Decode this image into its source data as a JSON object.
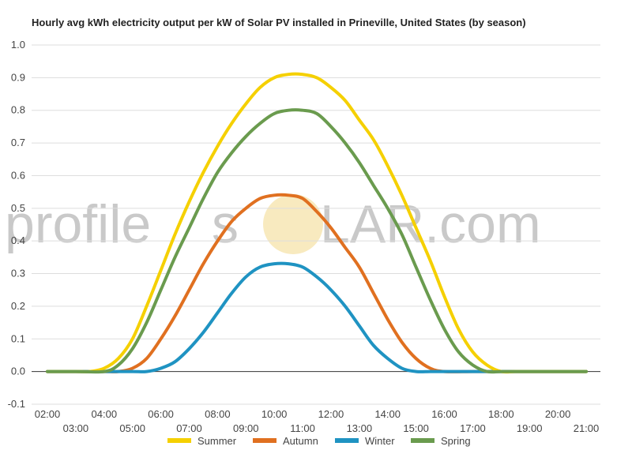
{
  "watermark": {
    "text_left": "profile",
    "text_mid": "s",
    "text_right": "LAR.com"
  },
  "chart_data": {
    "type": "line",
    "title": "Hourly avg kWh electricity output per kW of Solar PV installed in Prineville, United States (by season)",
    "xlabel": "",
    "ylabel": "",
    "x_ticks": [
      "02:00",
      "03:00",
      "04:00",
      "05:00",
      "06:00",
      "07:00",
      "08:00",
      "09:00",
      "10:00",
      "11:00",
      "12:00",
      "13:00",
      "14:00",
      "15:00",
      "16:00",
      "17:00",
      "18:00",
      "19:00",
      "20:00",
      "21:00"
    ],
    "y_ticks": [
      "1.0",
      "0.9",
      "0.8",
      "0.7",
      "0.6",
      "0.5",
      "0.4",
      "0.3",
      "0.2",
      "0.1",
      "0.0",
      "-0.1"
    ],
    "xlim": [
      2,
      21
    ],
    "ylim": [
      -0.1,
      1.0
    ],
    "grid": true,
    "legend_position": "bottom",
    "series": [
      {
        "name": "Summer",
        "color": "#f5d000",
        "points": [
          [
            2,
            0.0
          ],
          [
            3,
            0.0
          ],
          [
            3.5,
            0.0
          ],
          [
            4,
            0.01
          ],
          [
            4.5,
            0.04
          ],
          [
            5,
            0.1
          ],
          [
            5.5,
            0.2
          ],
          [
            6,
            0.31
          ],
          [
            6.5,
            0.42
          ],
          [
            7,
            0.52
          ],
          [
            7.5,
            0.61
          ],
          [
            8,
            0.69
          ],
          [
            8.5,
            0.76
          ],
          [
            9,
            0.82
          ],
          [
            9.5,
            0.87
          ],
          [
            10,
            0.9
          ],
          [
            10.5,
            0.91
          ],
          [
            11,
            0.91
          ],
          [
            11.5,
            0.9
          ],
          [
            12,
            0.87
          ],
          [
            12.5,
            0.83
          ],
          [
            13,
            0.77
          ],
          [
            13.5,
            0.71
          ],
          [
            14,
            0.63
          ],
          [
            14.5,
            0.54
          ],
          [
            15,
            0.44
          ],
          [
            15.5,
            0.34
          ],
          [
            16,
            0.23
          ],
          [
            16.5,
            0.13
          ],
          [
            17,
            0.06
          ],
          [
            17.5,
            0.02
          ],
          [
            18,
            0.0
          ],
          [
            18.5,
            0.0
          ],
          [
            19,
            0.0
          ],
          [
            20,
            0.0
          ],
          [
            21,
            0.0
          ]
        ]
      },
      {
        "name": "Autumn",
        "color": "#e07020",
        "points": [
          [
            2,
            0.0
          ],
          [
            3,
            0.0
          ],
          [
            4,
            0.0
          ],
          [
            4.5,
            0.0
          ],
          [
            5,
            0.01
          ],
          [
            5.5,
            0.04
          ],
          [
            6,
            0.1
          ],
          [
            6.5,
            0.17
          ],
          [
            7,
            0.25
          ],
          [
            7.5,
            0.33
          ],
          [
            8,
            0.4
          ],
          [
            8.5,
            0.46
          ],
          [
            9,
            0.5
          ],
          [
            9.5,
            0.53
          ],
          [
            10,
            0.54
          ],
          [
            10.5,
            0.54
          ],
          [
            11,
            0.53
          ],
          [
            11.5,
            0.49
          ],
          [
            12,
            0.44
          ],
          [
            12.5,
            0.38
          ],
          [
            13,
            0.32
          ],
          [
            13.5,
            0.24
          ],
          [
            14,
            0.16
          ],
          [
            14.5,
            0.09
          ],
          [
            15,
            0.04
          ],
          [
            15.5,
            0.01
          ],
          [
            16,
            0.0
          ],
          [
            17,
            0.0
          ],
          [
            18,
            0.0
          ],
          [
            19,
            0.0
          ],
          [
            20,
            0.0
          ],
          [
            21,
            0.0
          ]
        ]
      },
      {
        "name": "Winter",
        "color": "#1f93c2",
        "points": [
          [
            2,
            0.0
          ],
          [
            3,
            0.0
          ],
          [
            4,
            0.0
          ],
          [
            5,
            0.0
          ],
          [
            5.5,
            0.0
          ],
          [
            6,
            0.01
          ],
          [
            6.5,
            0.03
          ],
          [
            7,
            0.07
          ],
          [
            7.5,
            0.12
          ],
          [
            8,
            0.18
          ],
          [
            8.5,
            0.24
          ],
          [
            9,
            0.29
          ],
          [
            9.5,
            0.32
          ],
          [
            10,
            0.33
          ],
          [
            10.5,
            0.33
          ],
          [
            11,
            0.32
          ],
          [
            11.5,
            0.29
          ],
          [
            12,
            0.25
          ],
          [
            12.5,
            0.2
          ],
          [
            13,
            0.14
          ],
          [
            13.5,
            0.08
          ],
          [
            14,
            0.04
          ],
          [
            14.5,
            0.01
          ],
          [
            15,
            0.0
          ],
          [
            15.5,
            0.0
          ],
          [
            16,
            0.0
          ],
          [
            17,
            0.0
          ],
          [
            18,
            0.0
          ],
          [
            19,
            0.0
          ],
          [
            20,
            0.0
          ],
          [
            21,
            0.0
          ]
        ]
      },
      {
        "name": "Spring",
        "color": "#6a9b4e",
        "points": [
          [
            2,
            0.0
          ],
          [
            3,
            0.0
          ],
          [
            4,
            0.0
          ],
          [
            4.5,
            0.02
          ],
          [
            5,
            0.07
          ],
          [
            5.5,
            0.15
          ],
          [
            6,
            0.25
          ],
          [
            6.5,
            0.35
          ],
          [
            7,
            0.44
          ],
          [
            7.5,
            0.53
          ],
          [
            8,
            0.61
          ],
          [
            8.5,
            0.67
          ],
          [
            9,
            0.72
          ],
          [
            9.5,
            0.76
          ],
          [
            10,
            0.79
          ],
          [
            10.5,
            0.8
          ],
          [
            11,
            0.8
          ],
          [
            11.5,
            0.79
          ],
          [
            12,
            0.75
          ],
          [
            12.5,
            0.7
          ],
          [
            13,
            0.64
          ],
          [
            13.5,
            0.57
          ],
          [
            14,
            0.5
          ],
          [
            14.5,
            0.42
          ],
          [
            15,
            0.32
          ],
          [
            15.5,
            0.22
          ],
          [
            16,
            0.13
          ],
          [
            16.5,
            0.06
          ],
          [
            17,
            0.02
          ],
          [
            17.5,
            0.0
          ],
          [
            18,
            0.0
          ],
          [
            18.5,
            0.0
          ],
          [
            19,
            0.0
          ],
          [
            20,
            0.0
          ],
          [
            21,
            0.0
          ]
        ]
      }
    ]
  }
}
